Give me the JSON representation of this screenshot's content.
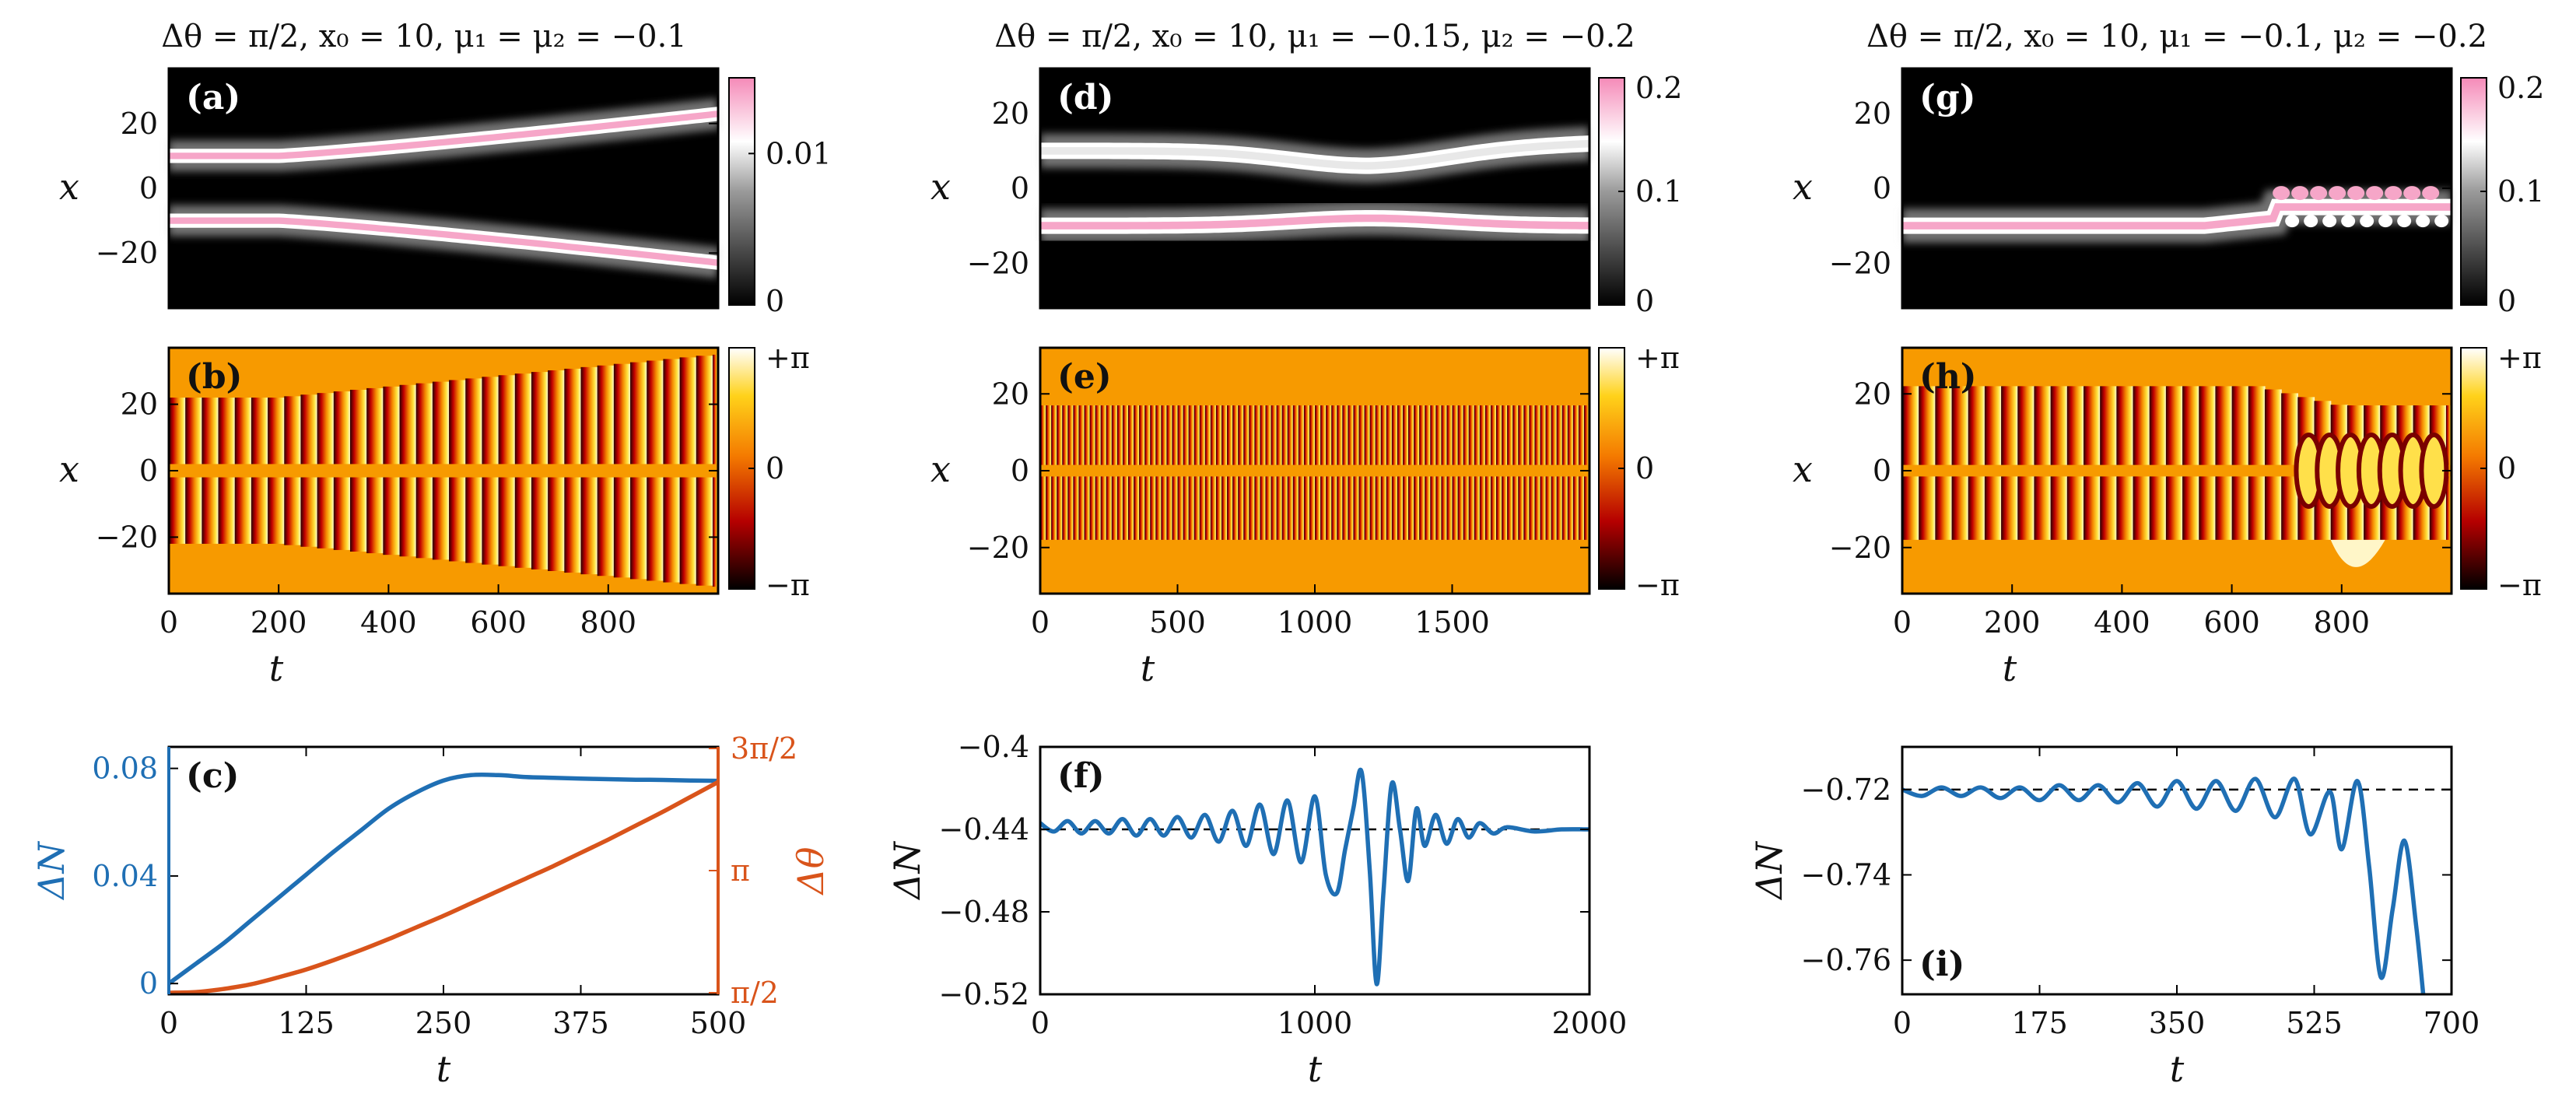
{
  "colors": {
    "blue": "#1f6fb4",
    "orange": "#d9541b",
    "phase_bg": "#f79a00",
    "pink": "#f6a6c8",
    "black": "#000000"
  },
  "chart_data": [
    {
      "id": "a",
      "type": "heatmap",
      "label": "(a)",
      "title": "Δθ = π/2, x₀ = 10, μ₁ = μ₂ = −0.1",
      "xlabel": "",
      "ylabel": "x",
      "xlim": [
        0,
        1000
      ],
      "ylim": [
        -37,
        37
      ],
      "yticks": [
        -20,
        0,
        20
      ],
      "ytick_labels": [
        "−20",
        "0",
        "20"
      ],
      "colorbar": {
        "ticks": [
          0,
          0.01
        ],
        "tick_labels": [
          "0",
          "0.01"
        ],
        "range": [
          0,
          0.015
        ],
        "colormap": "black-white-pink"
      },
      "tracks": [
        {
          "name": "soliton-1",
          "x_start": 10,
          "x_end": 23,
          "bend_t": 200
        },
        {
          "name": "soliton-2",
          "x_start": -10,
          "x_end": -23,
          "bend_t": 200
        }
      ]
    },
    {
      "id": "b",
      "type": "heatmap",
      "label": "(b)",
      "xlabel": "t",
      "ylabel": "x",
      "xlim": [
        0,
        1000
      ],
      "ylim": [
        -37,
        37
      ],
      "xticks": [
        0,
        200,
        400,
        600,
        800
      ],
      "xtick_labels": [
        "0",
        "200",
        "400",
        "600",
        "800"
      ],
      "yticks": [
        -20,
        0,
        20
      ],
      "ytick_labels": [
        "−20",
        "0",
        "20"
      ],
      "colorbar": {
        "ticks": [
          -3.1416,
          0,
          3.1416
        ],
        "tick_labels": [
          "−π",
          "0",
          "+π"
        ],
        "colormap": "hot"
      },
      "stripe_period_t": 30
    },
    {
      "id": "c",
      "type": "line",
      "label": "(c)",
      "xlabel": "t",
      "ylabel": "ΔN",
      "y2label": "Δθ",
      "xlim": [
        0,
        500
      ],
      "ylim": [
        -0.004,
        0.088
      ],
      "xticks": [
        0,
        125,
        250,
        375,
        500
      ],
      "xtick_labels": [
        "0",
        "125",
        "250",
        "375",
        "500"
      ],
      "yticks": [
        0,
        0.04,
        0.08
      ],
      "ytick_labels": [
        "0",
        "0.04",
        "0.08"
      ],
      "y2lim": [
        1.5708,
        4.7124
      ],
      "y2ticks": [
        1.5708,
        3.1416,
        4.7124
      ],
      "y2tick_labels": [
        "π/2",
        "π",
        "3π/2"
      ],
      "series": [
        {
          "name": "ΔN",
          "axis": "left",
          "x": [
            0,
            25,
            50,
            75,
            100,
            125,
            150,
            175,
            200,
            225,
            250,
            275,
            300,
            325,
            350,
            375,
            400,
            425,
            450,
            475,
            500
          ],
          "values": [
            0,
            0.0075,
            0.015,
            0.0235,
            0.032,
            0.0405,
            0.049,
            0.057,
            0.065,
            0.071,
            0.0755,
            0.0775,
            0.0775,
            0.0768,
            0.0765,
            0.0762,
            0.076,
            0.0758,
            0.0757,
            0.0755,
            0.0754
          ]
        },
        {
          "name": "Δθ",
          "axis": "right",
          "x": [
            0,
            25,
            50,
            75,
            100,
            125,
            150,
            175,
            200,
            225,
            250,
            275,
            300,
            325,
            350,
            375,
            400,
            425,
            450,
            475,
            500
          ],
          "values": [
            1.5708,
            1.58,
            1.62,
            1.68,
            1.77,
            1.87,
            1.99,
            2.12,
            2.26,
            2.41,
            2.56,
            2.72,
            2.88,
            3.04,
            3.2,
            3.37,
            3.54,
            3.72,
            3.9,
            4.09,
            4.28
          ]
        }
      ],
      "reference_line": {
        "axis": "right",
        "y": 1.5708
      }
    },
    {
      "id": "d",
      "type": "heatmap",
      "label": "(d)",
      "title": "Δθ = π/2, x₀ = 10, μ₁ = −0.15, μ₂ = −0.2",
      "xlabel": "",
      "ylabel": "x",
      "xlim": [
        0,
        2000
      ],
      "ylim": [
        -32,
        32
      ],
      "yticks": [
        -20,
        0,
        20
      ],
      "ytick_labels": [
        "−20",
        "0",
        "20"
      ],
      "colorbar": {
        "ticks": [
          0,
          0.1,
          0.2
        ],
        "tick_labels": [
          "0",
          "0.1",
          "0.2"
        ],
        "range": [
          0,
          0.2
        ],
        "colormap": "black-white-pink"
      },
      "tracks": [
        {
          "name": "soliton-1",
          "x_start": 10,
          "x_mid": 6,
          "x_end": 12,
          "mid_t": 1200
        },
        {
          "name": "soliton-2",
          "x_start": -10,
          "x_mid": -8,
          "x_end": -10,
          "mid_t": 1200
        }
      ]
    },
    {
      "id": "e",
      "type": "heatmap",
      "label": "(e)",
      "xlabel": "t",
      "ylabel": "x",
      "xlim": [
        0,
        2000
      ],
      "ylim": [
        -32,
        32
      ],
      "xticks": [
        0,
        500,
        1000,
        1500
      ],
      "xtick_labels": [
        "0",
        "500",
        "1000",
        "1500"
      ],
      "yticks": [
        -20,
        0,
        20
      ],
      "ytick_labels": [
        "−20",
        "0",
        "20"
      ],
      "colorbar": {
        "ticks": [
          -3.1416,
          0,
          3.1416
        ],
        "tick_labels": [
          "−π",
          "0",
          "+π"
        ],
        "colormap": "hot"
      },
      "stripe_period_t": 20
    },
    {
      "id": "f",
      "type": "line",
      "label": "(f)",
      "xlabel": "t",
      "ylabel": "ΔN",
      "xlim": [
        0,
        2000
      ],
      "ylim": [
        -0.52,
        -0.4
      ],
      "xticks": [
        0,
        1000,
        2000
      ],
      "xtick_labels": [
        "0",
        "1000",
        "2000"
      ],
      "yticks": [
        -0.52,
        -0.48,
        -0.44,
        -0.4
      ],
      "ytick_labels": [
        "−0.52",
        "−0.48",
        "−0.44",
        "−0.4"
      ],
      "series": [
        {
          "name": "ΔN",
          "x": [
            0,
            50,
            100,
            150,
            200,
            250,
            300,
            350,
            400,
            450,
            500,
            550,
            600,
            650,
            700,
            750,
            800,
            850,
            900,
            950,
            1000,
            1040,
            1080,
            1110,
            1140,
            1170,
            1200,
            1225,
            1250,
            1280,
            1310,
            1340,
            1370,
            1400,
            1440,
            1480,
            1520,
            1560,
            1600,
            1650,
            1700,
            1800,
            1900,
            2000
          ],
          "values": [
            -0.437,
            -0.441,
            -0.436,
            -0.442,
            -0.436,
            -0.442,
            -0.435,
            -0.443,
            -0.435,
            -0.443,
            -0.434,
            -0.444,
            -0.433,
            -0.446,
            -0.431,
            -0.448,
            -0.428,
            -0.452,
            -0.426,
            -0.456,
            -0.424,
            -0.462,
            -0.471,
            -0.45,
            -0.43,
            -0.412,
            -0.46,
            -0.515,
            -0.47,
            -0.418,
            -0.44,
            -0.465,
            -0.43,
            -0.448,
            -0.433,
            -0.447,
            -0.435,
            -0.444,
            -0.437,
            -0.442,
            -0.439,
            -0.441,
            -0.44,
            -0.44
          ]
        }
      ],
      "reference_line": {
        "axis": "left",
        "y": -0.44
      }
    },
    {
      "id": "g",
      "type": "heatmap",
      "label": "(g)",
      "title": "Δθ = π/2, x₀ = 10, μ₁ = −0.1, μ₂ = −0.2",
      "xlabel": "",
      "ylabel": "x",
      "xlim": [
        0,
        1000
      ],
      "ylim": [
        -32,
        32
      ],
      "yticks": [
        -20,
        0,
        20
      ],
      "ytick_labels": [
        "−20",
        "0",
        "20"
      ],
      "colorbar": {
        "ticks": [
          0,
          0.1,
          0.2
        ],
        "tick_labels": [
          "0",
          "0.1",
          "0.2"
        ],
        "range": [
          0,
          0.2
        ],
        "colormap": "black-white-pink"
      },
      "tracks": [
        {
          "name": "soliton-1",
          "x_start": 10,
          "decay_t": 650
        },
        {
          "name": "soliton-2",
          "x_start": -10,
          "x_end": -5,
          "breathing_from_t": 680
        }
      ]
    },
    {
      "id": "h",
      "type": "heatmap",
      "label": "(h)",
      "xlabel": "t",
      "ylabel": "x",
      "xlim": [
        0,
        1000
      ],
      "ylim": [
        -32,
        32
      ],
      "xticks": [
        0,
        200,
        400,
        600,
        800
      ],
      "xtick_labels": [
        "0",
        "200",
        "400",
        "600",
        "800"
      ],
      "yticks": [
        -20,
        0,
        20
      ],
      "ytick_labels": [
        "−20",
        "0",
        "20"
      ],
      "colorbar": {
        "ticks": [
          -3.1416,
          0,
          3.1416
        ],
        "tick_labels": [
          "−π",
          "0",
          "+π"
        ],
        "colormap": "hot"
      },
      "stripe_period_t": 30
    },
    {
      "id": "i",
      "type": "line",
      "label": "(i)",
      "xlabel": "t",
      "ylabel": "ΔN",
      "xlim": [
        0,
        700
      ],
      "ylim": [
        -0.768,
        -0.71
      ],
      "xticks": [
        0,
        175,
        350,
        525,
        700
      ],
      "xtick_labels": [
        "0",
        "175",
        "350",
        "525",
        "700"
      ],
      "yticks": [
        -0.76,
        -0.74,
        -0.72
      ],
      "ytick_labels": [
        "−0.76",
        "−0.74",
        "−0.72"
      ],
      "series": [
        {
          "name": "ΔN",
          "x": [
            0,
            25,
            50,
            75,
            100,
            125,
            150,
            175,
            200,
            225,
            250,
            275,
            300,
            325,
            350,
            375,
            400,
            425,
            450,
            475,
            500,
            520,
            545,
            560,
            580,
            595,
            610,
            625,
            640,
            655,
            665
          ],
          "values": [
            -0.72,
            -0.7215,
            -0.7195,
            -0.7215,
            -0.7195,
            -0.722,
            -0.7195,
            -0.7225,
            -0.719,
            -0.7225,
            -0.719,
            -0.723,
            -0.7185,
            -0.724,
            -0.718,
            -0.7245,
            -0.718,
            -0.725,
            -0.7175,
            -0.7265,
            -0.7175,
            -0.7305,
            -0.7205,
            -0.734,
            -0.718,
            -0.738,
            -0.764,
            -0.748,
            -0.732,
            -0.752,
            -0.77
          ]
        }
      ],
      "reference_line": {
        "axis": "left",
        "y": -0.72
      }
    }
  ]
}
